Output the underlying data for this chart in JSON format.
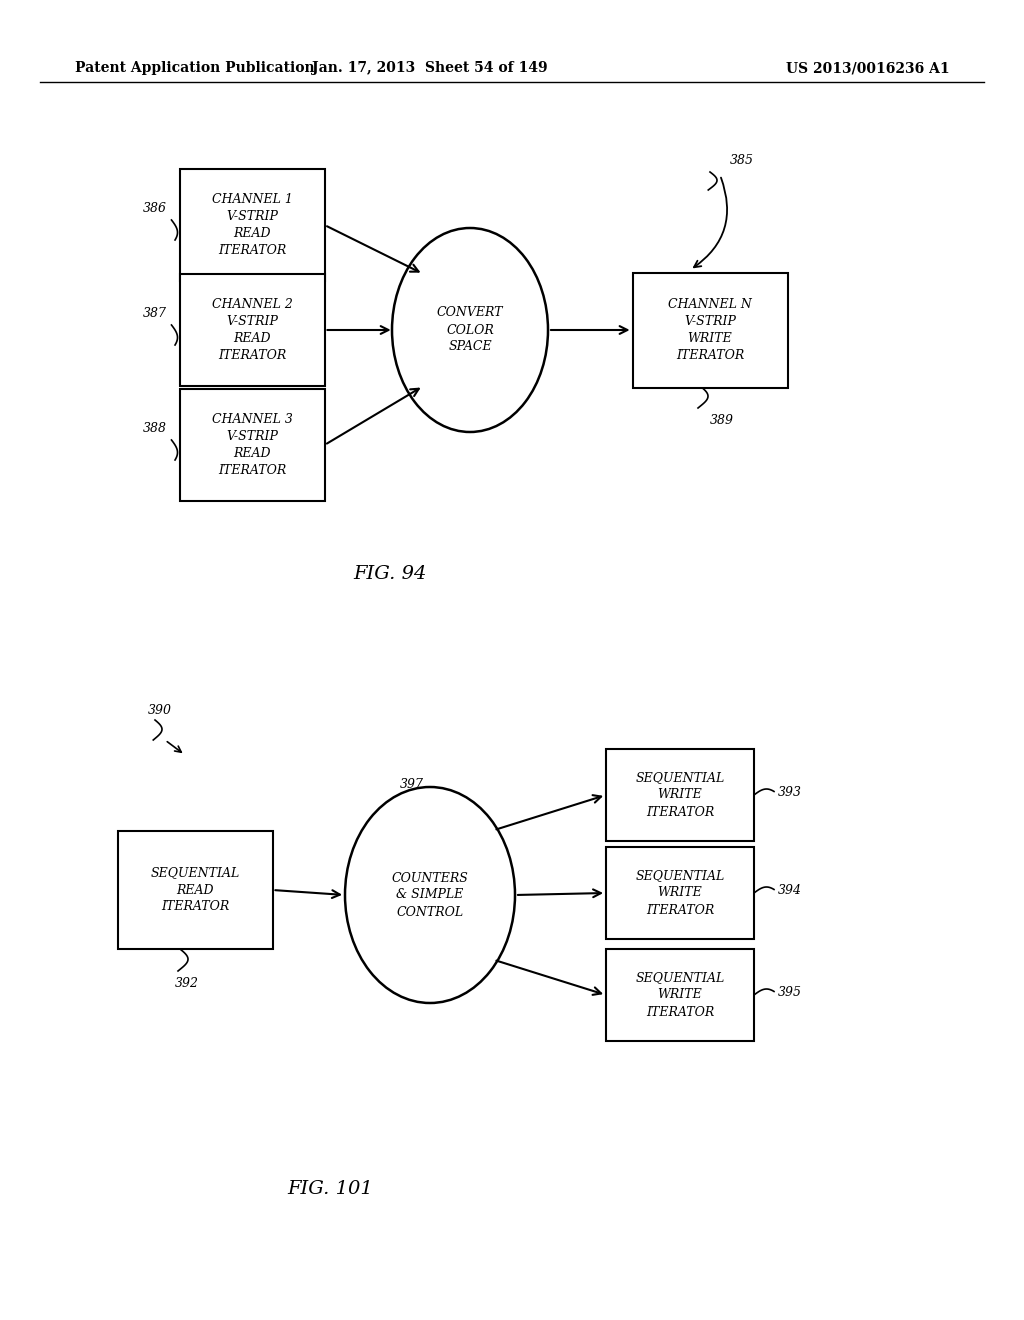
{
  "header_left": "Patent Application Publication",
  "header_mid": "Jan. 17, 2013  Sheet 54 of 149",
  "header_right": "US 2013/0016236 A1",
  "fig94_label": "FIG. 94",
  "fig101_label": "FIG. 101",
  "bg_color": "#ffffff"
}
